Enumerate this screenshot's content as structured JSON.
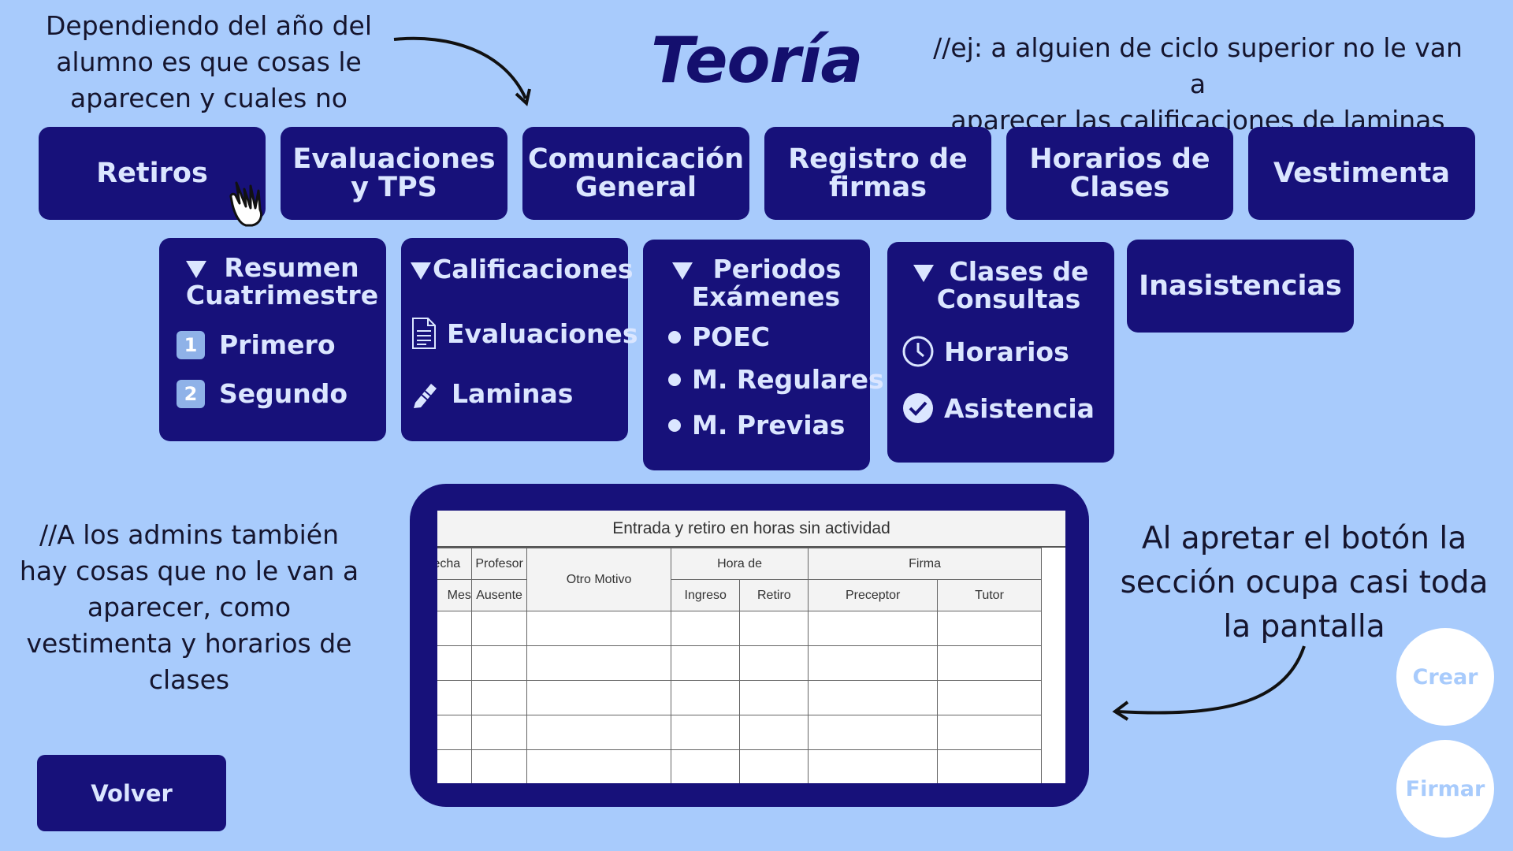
{
  "title": "Teoría",
  "notes": {
    "top_left": [
      "Dependiendo del año del",
      "alumno es que cosas le",
      "aparecen y cuales no"
    ],
    "top_right": [
      "//ej: a alguien de ciclo superior no le van a",
      "aparecer las calificaciones de laminas"
    ],
    "left": [
      "//A los admins también",
      "hay cosas que no le van a",
      "aparecer, como",
      "vestimenta y horarios de",
      "clases"
    ],
    "right": [
      "Al apretar el botón la",
      "sección ocupa casi toda",
      "la pantalla"
    ]
  },
  "top_buttons": [
    {
      "line1": "Retiros",
      "line2": ""
    },
    {
      "line1": "Evaluaciones",
      "line2": "y TPS"
    },
    {
      "line1": "Comunicación",
      "line2": "General"
    },
    {
      "line1": "Registro de",
      "line2": "firmas"
    },
    {
      "line1": "Horarios de",
      "line2": "Clases"
    },
    {
      "line1": "Vestimenta",
      "line2": ""
    }
  ],
  "panels": {
    "resumen": {
      "title1": "Resumen",
      "title2": "Cuatrimestre",
      "items": [
        {
          "num": "1",
          "label": "Primero"
        },
        {
          "num": "2",
          "label": "Segundo"
        }
      ]
    },
    "calificaciones": {
      "title": "Calificaciones",
      "items": [
        "Evaluaciones",
        "Laminas"
      ]
    },
    "periodos": {
      "title1": "Periodos",
      "title2": "Exámenes",
      "items": [
        "POEC",
        "M. Regulares",
        "M. Previas"
      ]
    },
    "consultas": {
      "title1": "Clases de",
      "title2": "Consultas",
      "items": [
        "Horarios",
        "Asistencia"
      ]
    },
    "inasistencias": {
      "label": "Inasistencias"
    }
  },
  "sheet": {
    "title": "Entrada y retiro en horas sin actividad",
    "h_fecha": "Fecha",
    "h_profesor": "Profesor",
    "h_otro": "Otro Motivo",
    "h_hora": "Hora de",
    "h_firma": "Firma",
    "h_mes": "Mes",
    "h_ausente": "Ausente",
    "h_ingreso": "Ingreso",
    "h_retiro": "Retiro",
    "h_preceptor": "Preceptor",
    "h_tutor": "Tutor"
  },
  "volver": "Volver",
  "crear": "Crear",
  "firmar": "Firmar",
  "colors": {
    "background": "#a8cbfc",
    "button": "#17117a",
    "button_text": "#dbe6ff"
  }
}
